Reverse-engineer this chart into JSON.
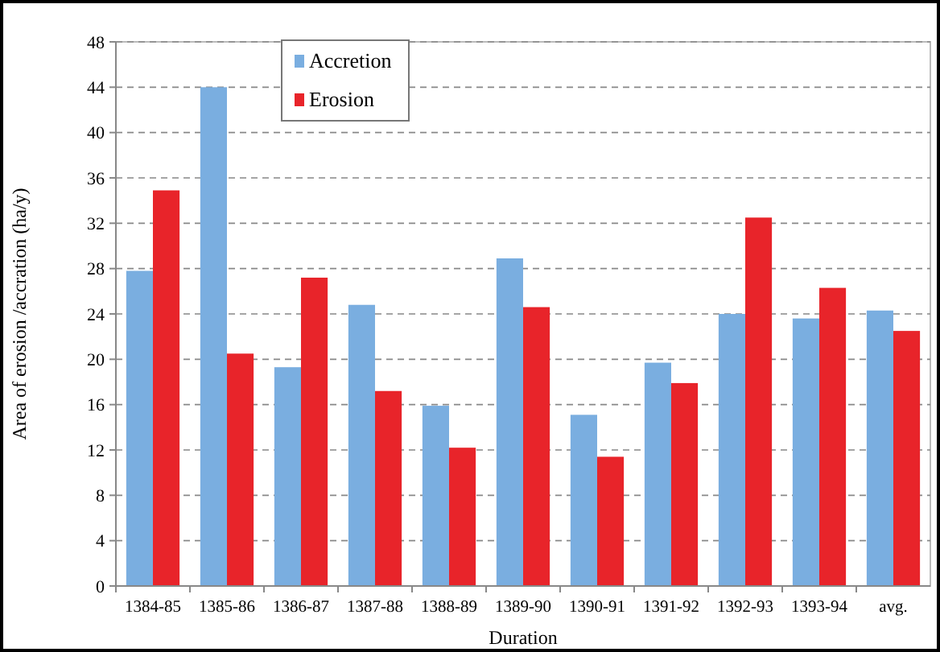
{
  "chart_data": {
    "type": "bar",
    "xlabel": "Duration",
    "ylabel": "Area of erosion /accration (ha/y)",
    "categories": [
      "1384-85",
      "1385-86",
      "1386-87",
      "1387-88",
      "1388-89",
      "1389-90",
      "1390-91",
      "1391-92",
      "1392-93",
      "1393-94",
      "avg."
    ],
    "series": [
      {
        "name": "Accretion",
        "color": "#7aaee0",
        "values": [
          27.8,
          44,
          19.3,
          24.8,
          15.9,
          28.9,
          15.1,
          19.7,
          24,
          23.6,
          24.3
        ]
      },
      {
        "name": "Erosion",
        "color": "#e8242a",
        "values": [
          34.9,
          20.5,
          27.2,
          17.2,
          12.2,
          24.6,
          11.4,
          17.9,
          32.5,
          26.3,
          22.5
        ]
      }
    ],
    "ylim": [
      0,
      48
    ],
    "yticks": [
      0,
      4,
      8,
      12,
      16,
      20,
      24,
      28,
      32,
      36,
      40,
      44,
      48
    ],
    "grid": "y",
    "legend": "top left"
  }
}
